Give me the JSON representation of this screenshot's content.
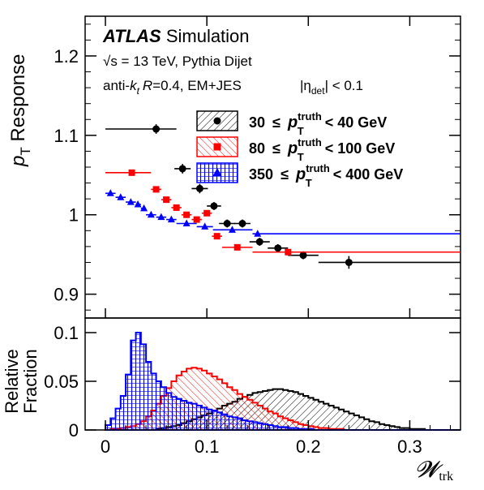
{
  "chart_data": [
    {
      "type": "scatter",
      "ylabel_main": "p",
      "ylabel_sub": "T",
      "ylabel_rest": " Response",
      "xlim": [
        -0.02,
        0.35
      ],
      "ylim": [
        0.87,
        1.25
      ],
      "yticks": [
        0.9,
        1,
        1.1,
        1.2
      ],
      "ytick_labels": [
        "0.9",
        "1",
        "1.1",
        "1.2"
      ],
      "annotations": {
        "brand": "ATLAS",
        "brand_suffix": " Simulation",
        "line2": "√s = 13 TeV, Pythia Dijet",
        "line3_a": "anti-",
        "line3_k": "k",
        "line3_t": "t",
        "line3_r": "R",
        "line3_b": "=0.4, EM+JES",
        "line3_eta": "|η",
        "line3_det": "det",
        "line3_c": "| < 0.1"
      },
      "legend": [
        {
          "lo": "30",
          "le": "≤",
          "p": "p",
          "sup": "truth",
          "sub": "T",
          "rel": "< 40 GeV"
        },
        {
          "lo": "80",
          "le": "≤",
          "p": "p",
          "sup": "truth",
          "sub": "T",
          "rel": "< 100 GeV"
        },
        {
          "lo": "350",
          "le": "≤",
          "p": "p",
          "sup": "truth",
          "sub": "T",
          "rel": "< 400 GeV"
        }
      ],
      "series": [
        {
          "color": "#000000",
          "marker": "circle",
          "points": [
            {
              "x": 0.05,
              "y": 1.108,
              "xlo": 0.0,
              "xhi": 0.07,
              "yerr": 0.006
            },
            {
              "x": 0.076,
              "y": 1.058,
              "xlo": 0.068,
              "xhi": 0.084,
              "yerr": 0.006
            },
            {
              "x": 0.093,
              "y": 1.033,
              "xlo": 0.085,
              "xhi": 0.101,
              "yerr": 0.006
            },
            {
              "x": 0.107,
              "y": 1.011,
              "xlo": 0.1,
              "xhi": 0.114,
              "yerr": 0.005
            },
            {
              "x": 0.12,
              "y": 0.989,
              "xlo": 0.112,
              "xhi": 0.128,
              "yerr": 0.005
            },
            {
              "x": 0.135,
              "y": 0.989,
              "xlo": 0.127,
              "xhi": 0.143,
              "yerr": 0.005
            },
            {
              "x": 0.152,
              "y": 0.966,
              "xlo": 0.142,
              "xhi": 0.162,
              "yerr": 0.005
            },
            {
              "x": 0.17,
              "y": 0.958,
              "xlo": 0.16,
              "xhi": 0.18,
              "yerr": 0.005
            },
            {
              "x": 0.195,
              "y": 0.949,
              "xlo": 0.18,
              "xhi": 0.21,
              "yerr": 0.005
            },
            {
              "x": 0.24,
              "y": 0.94,
              "xlo": 0.21,
              "xhi": 0.35,
              "yerr": 0.008
            }
          ]
        },
        {
          "color": "#ff0000",
          "marker": "square",
          "points": [
            {
              "x": 0.026,
              "y": 1.053,
              "xlo": 0.0,
              "xhi": 0.045,
              "yerr": 0.0
            },
            {
              "x": 0.05,
              "y": 1.032,
              "xlo": 0.045,
              "xhi": 0.055,
              "yerr": 0.0
            },
            {
              "x": 0.06,
              "y": 1.019,
              "xlo": 0.055,
              "xhi": 0.065,
              "yerr": 0.0
            },
            {
              "x": 0.07,
              "y": 1.009,
              "xlo": 0.065,
              "xhi": 0.075,
              "yerr": 0.0
            },
            {
              "x": 0.08,
              "y": 1.0,
              "xlo": 0.075,
              "xhi": 0.085,
              "yerr": 0.0
            },
            {
              "x": 0.09,
              "y": 0.994,
              "xlo": 0.085,
              "xhi": 0.095,
              "yerr": 0.0
            },
            {
              "x": 0.1,
              "y": 1.002,
              "xlo": 0.095,
              "xhi": 0.105,
              "yerr": 0.0
            },
            {
              "x": 0.11,
              "y": 0.973,
              "xlo": 0.105,
              "xhi": 0.115,
              "yerr": 0.0
            },
            {
              "x": 0.13,
              "y": 0.959,
              "xlo": 0.115,
              "xhi": 0.145,
              "yerr": 0.0
            },
            {
              "x": 0.18,
              "y": 0.953,
              "xlo": 0.145,
              "xhi": 0.35,
              "yerr": 0.0
            }
          ]
        },
        {
          "color": "#0000ff",
          "marker": "triangle",
          "points": [
            {
              "x": 0.005,
              "y": 1.027,
              "xlo": 0.0,
              "xhi": 0.01,
              "yerr": 0.0
            },
            {
              "x": 0.015,
              "y": 1.022,
              "xlo": 0.01,
              "xhi": 0.02,
              "yerr": 0.0
            },
            {
              "x": 0.025,
              "y": 1.016,
              "xlo": 0.02,
              "xhi": 0.03,
              "yerr": 0.0
            },
            {
              "x": 0.032,
              "y": 1.013,
              "xlo": 0.03,
              "xhi": 0.035,
              "yerr": 0.0
            },
            {
              "x": 0.038,
              "y": 1.008,
              "xlo": 0.035,
              "xhi": 0.04,
              "yerr": 0.0
            },
            {
              "x": 0.045,
              "y": 1.0,
              "xlo": 0.04,
              "xhi": 0.05,
              "yerr": 0.0
            },
            {
              "x": 0.055,
              "y": 0.997,
              "xlo": 0.05,
              "xhi": 0.06,
              "yerr": 0.0
            },
            {
              "x": 0.065,
              "y": 0.994,
              "xlo": 0.06,
              "xhi": 0.07,
              "yerr": 0.0
            },
            {
              "x": 0.08,
              "y": 0.989,
              "xlo": 0.07,
              "xhi": 0.09,
              "yerr": 0.0
            },
            {
              "x": 0.098,
              "y": 0.985,
              "xlo": 0.09,
              "xhi": 0.106,
              "yerr": 0.0
            },
            {
              "x": 0.125,
              "y": 0.981,
              "xlo": 0.106,
              "xhi": 0.145,
              "yerr": 0.0
            },
            {
              "x": 0.15,
              "y": 0.976,
              "xlo": 0.145,
              "xhi": 0.35,
              "yerr": 0.0
            }
          ]
        }
      ]
    },
    {
      "type": "area",
      "ylabel_line1": "Relative",
      "ylabel_line2": "Fraction",
      "xlabel": "𝓦",
      "xlabel_sub": "trk",
      "xlim": [
        -0.02,
        0.35
      ],
      "ylim": [
        0,
        0.115
      ],
      "xticks": [
        0,
        0.1,
        0.2,
        0.3
      ],
      "xtick_labels": [
        "0",
        "0.1",
        "0.2",
        "0.3"
      ],
      "yticks": [
        0,
        0.05,
        0.1
      ],
      "ytick_labels": [
        "0",
        "0.05",
        "0.1"
      ],
      "bin_width": 0.005,
      "series": [
        {
          "color": "#000000",
          "hatch": "diag-right",
          "values": [
            0.0,
            0.0,
            0.0,
            0.0,
            0.0,
            0.0,
            0.0,
            0.0,
            0.0,
            0.0,
            0.001,
            0.002,
            0.003,
            0.004,
            0.005,
            0.007,
            0.009,
            0.011,
            0.013,
            0.015,
            0.017,
            0.02,
            0.022,
            0.025,
            0.027,
            0.029,
            0.032,
            0.034,
            0.036,
            0.038,
            0.039,
            0.04,
            0.041,
            0.042,
            0.042,
            0.041,
            0.04,
            0.039,
            0.037,
            0.035,
            0.033,
            0.031,
            0.029,
            0.027,
            0.025,
            0.023,
            0.021,
            0.019,
            0.017,
            0.015,
            0.013,
            0.011,
            0.009,
            0.008,
            0.006,
            0.005,
            0.004,
            0.003,
            0.002,
            0.002,
            0.001,
            0.001,
            0.001,
            0.0,
            0.0,
            0.0,
            0.0,
            0.0,
            0.0,
            0.0
          ]
        },
        {
          "color": "#ff0000",
          "hatch": "diag-left",
          "values": [
            0.0,
            0.001,
            0.001,
            0.002,
            0.003,
            0.004,
            0.006,
            0.009,
            0.014,
            0.02,
            0.027,
            0.035,
            0.043,
            0.05,
            0.056,
            0.06,
            0.063,
            0.064,
            0.063,
            0.061,
            0.058,
            0.055,
            0.052,
            0.048,
            0.044,
            0.041,
            0.037,
            0.034,
            0.031,
            0.028,
            0.025,
            0.022,
            0.019,
            0.017,
            0.014,
            0.012,
            0.01,
            0.008,
            0.006,
            0.005,
            0.004,
            0.003,
            0.002,
            0.002,
            0.001,
            0.001,
            0.001,
            0.0,
            0.0,
            0.0,
            0.0,
            0.0,
            0.0,
            0.0,
            0.0,
            0.0,
            0.0,
            0.0,
            0.0,
            0.0,
            0.0,
            0.0,
            0.0,
            0.0,
            0.0,
            0.0,
            0.0,
            0.0,
            0.0,
            0.0
          ]
        },
        {
          "color": "#0000ff",
          "hatch": "cross",
          "values": [
            0.005,
            0.012,
            0.022,
            0.035,
            0.057,
            0.092,
            0.1,
            0.088,
            0.07,
            0.058,
            0.05,
            0.044,
            0.038,
            0.034,
            0.032,
            0.03,
            0.028,
            0.027,
            0.025,
            0.023,
            0.021,
            0.02,
            0.018,
            0.016,
            0.014,
            0.013,
            0.012,
            0.01,
            0.009,
            0.008,
            0.007,
            0.006,
            0.005,
            0.004,
            0.003,
            0.003,
            0.002,
            0.002,
            0.001,
            0.001,
            0.001,
            0.0,
            0.0,
            0.0,
            0.0,
            0.0,
            0.0,
            0.0,
            0.0,
            0.0,
            0.0,
            0.0,
            0.0,
            0.0,
            0.0,
            0.0,
            0.0,
            0.0,
            0.0,
            0.0,
            0.0,
            0.0,
            0.0,
            0.0,
            0.0,
            0.0,
            0.0,
            0.0,
            0.0,
            0.0
          ]
        }
      ]
    }
  ]
}
